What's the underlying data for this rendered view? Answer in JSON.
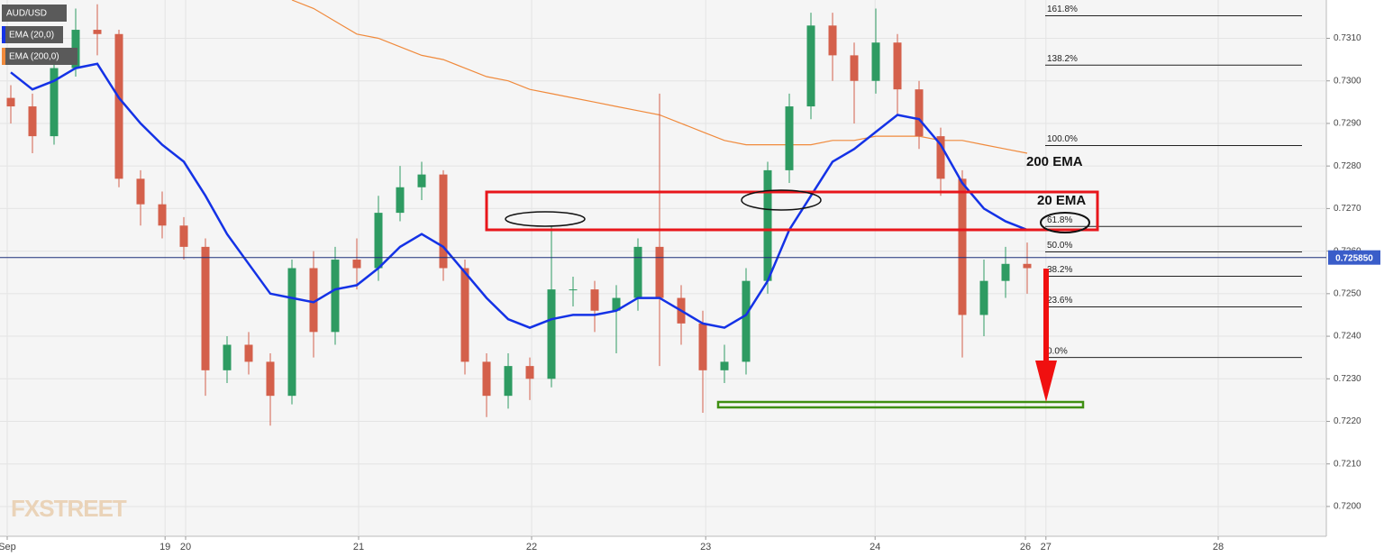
{
  "chart_data": {
    "type": "candlestick",
    "name": "AUD/USD",
    "xlim": [
      0,
      184
    ],
    "ylim": [
      0.7193,
      0.7319
    ],
    "x": [
      1.5,
      4.5,
      7.5,
      10.5,
      13.5,
      16.5,
      19.5,
      22.5,
      25.5,
      28.5,
      31.5,
      34.5,
      37.5,
      40.5,
      43.5,
      46.5,
      49.5,
      52.5,
      55.5,
      58.5,
      61.5,
      64.5,
      67.5,
      70.5,
      73.5,
      76.5,
      79.5,
      82.5,
      85.5,
      88.5,
      91.5,
      94.5,
      97.5,
      100.5,
      103.5,
      106.5,
      109.5,
      112.5,
      115.5,
      118.5,
      121.5,
      124.5,
      127.5,
      130.5,
      133.5,
      136.5,
      139.5,
      142.5
    ],
    "open": [
      0.7296,
      0.7294,
      0.7287,
      0.7303,
      0.7312,
      0.7311,
      0.7277,
      0.7271,
      0.7266,
      0.7261,
      0.7232,
      0.7238,
      0.7234,
      0.7226,
      0.7256,
      0.7241,
      0.7258,
      0.7256,
      0.7269,
      0.7275,
      0.7278,
      0.7256,
      0.7234,
      0.7226,
      0.7233,
      0.723,
      0.7251,
      0.7251,
      0.7246,
      0.7249,
      0.7261,
      0.7249,
      0.7243,
      0.7232,
      0.7234,
      0.7253,
      0.7279,
      0.7294,
      0.7313,
      0.7306,
      0.73,
      0.7309,
      0.7298,
      0.7287,
      0.7277,
      0.7245,
      0.7253,
      0.7257
    ],
    "high": [
      0.7299,
      0.7297,
      0.7305,
      0.7317,
      0.7318,
      0.7312,
      0.7279,
      0.7274,
      0.7268,
      0.7263,
      0.724,
      0.7241,
      0.7236,
      0.7258,
      0.726,
      0.7261,
      0.7263,
      0.7273,
      0.728,
      0.7281,
      0.7279,
      0.7258,
      0.7236,
      0.7236,
      0.7235,
      0.7266,
      0.7254,
      0.7253,
      0.7252,
      0.7263,
      0.7297,
      0.7252,
      0.7246,
      0.7238,
      0.7256,
      0.7281,
      0.7297,
      0.7316,
      0.7316,
      0.7309,
      0.7317,
      0.7311,
      0.73,
      0.7289,
      0.7279,
      0.7258,
      0.7261,
      0.7262
    ],
    "low": [
      0.729,
      0.7283,
      0.7285,
      0.7301,
      0.7306,
      0.7275,
      0.7266,
      0.7263,
      0.7258,
      0.7226,
      0.7229,
      0.7231,
      0.7219,
      0.7224,
      0.7235,
      0.7238,
      0.7251,
      0.7253,
      0.7267,
      0.7272,
      0.7253,
      0.7231,
      0.7221,
      0.7223,
      0.7225,
      0.7228,
      0.7247,
      0.7241,
      0.7236,
      0.7246,
      0.7233,
      0.7238,
      0.7222,
      0.7229,
      0.7231,
      0.725,
      0.7276,
      0.7291,
      0.73,
      0.729,
      0.7297,
      0.7292,
      0.7284,
      0.7273,
      0.7235,
      0.724,
      0.7249,
      0.725
    ],
    "close": [
      0.7294,
      0.7287,
      0.7303,
      0.7312,
      0.7311,
      0.7277,
      0.7271,
      0.7266,
      0.7261,
      0.7232,
      0.7238,
      0.7234,
      0.7226,
      0.7256,
      0.7241,
      0.7258,
      0.7256,
      0.7269,
      0.7275,
      0.7278,
      0.7256,
      0.7234,
      0.7226,
      0.7233,
      0.723,
      0.7251,
      0.7251,
      0.7246,
      0.7249,
      0.7261,
      0.7249,
      0.7243,
      0.7232,
      0.7234,
      0.7253,
      0.7279,
      0.7294,
      0.7313,
      0.7306,
      0.73,
      0.7309,
      0.7298,
      0.7287,
      0.7277,
      0.7245,
      0.7253,
      0.7257,
      0.7256
    ],
    "colors": {
      "up": "#2e9b62",
      "down": "#d4604b"
    },
    "series": [
      {
        "name": "EMA (20,0)",
        "color": "#1432e6",
        "values": [
          0.7302,
          0.7298,
          0.73,
          0.7303,
          0.7304,
          0.7296,
          0.729,
          0.7285,
          0.7281,
          0.7273,
          0.7264,
          0.7257,
          0.725,
          0.7249,
          0.7248,
          0.7251,
          0.7252,
          0.7256,
          0.7261,
          0.7264,
          0.7261,
          0.7255,
          0.7249,
          0.7244,
          0.7242,
          0.7244,
          0.7245,
          0.7245,
          0.7246,
          0.7249,
          0.7249,
          0.7246,
          0.7243,
          0.7242,
          0.7245,
          0.7253,
          0.7265,
          0.7273,
          0.7281,
          0.7284,
          0.7288,
          0.7292,
          0.7291,
          0.7285,
          0.7276,
          0.727,
          0.7267,
          0.7265
        ]
      },
      {
        "name": "EMA (200,0)",
        "color": "#f08a3c",
        "values": [
          null,
          null,
          null,
          null,
          null,
          null,
          null,
          null,
          null,
          null,
          null,
          null,
          null,
          0.7319,
          0.7317,
          0.7314,
          0.7311,
          0.731,
          0.7308,
          0.7306,
          0.7305,
          0.7303,
          0.7301,
          0.73,
          0.7298,
          0.7297,
          0.7296,
          0.7295,
          0.7294,
          0.7293,
          0.7292,
          0.729,
          0.7288,
          0.7286,
          0.7285,
          0.7285,
          0.7285,
          0.7285,
          0.7286,
          0.7286,
          0.7287,
          0.7287,
          0.7287,
          0.7286,
          0.7286,
          0.7285,
          0.7284,
          0.7283
        ]
      }
    ],
    "yticks": [
      {
        "value": 0.72,
        "label": "0.7200"
      },
      {
        "value": 0.721,
        "label": "0.7210"
      },
      {
        "value": 0.722,
        "label": "0.7220"
      },
      {
        "value": 0.723,
        "label": "0.7230"
      },
      {
        "value": 0.724,
        "label": "0.7240"
      },
      {
        "value": 0.725,
        "label": "0.7250"
      },
      {
        "value": 0.726,
        "label": "0.7260"
      },
      {
        "value": 0.727,
        "label": "0.7270"
      },
      {
        "value": 0.728,
        "label": "0.7280"
      },
      {
        "value": 0.729,
        "label": "0.7290"
      },
      {
        "value": 0.73,
        "label": "0.7300"
      },
      {
        "value": 0.731,
        "label": "0.7310"
      }
    ],
    "xticks": [
      {
        "value": 1,
        "label": "Sep"
      },
      {
        "value": 22.9,
        "label": "19"
      },
      {
        "value": 25.75,
        "label": "20"
      },
      {
        "value": 49.75,
        "label": "21"
      },
      {
        "value": 73.75,
        "label": "22"
      },
      {
        "value": 97.9,
        "label": "23"
      },
      {
        "value": 121.4,
        "label": "24"
      },
      {
        "value": 142.25,
        "label": "26"
      },
      {
        "value": 145.1,
        "label": "27"
      },
      {
        "value": 169,
        "label": "28"
      }
    ],
    "grid": true,
    "current_price": {
      "value": 0.72585,
      "label": "0.725850"
    },
    "fib_levels": [
      {
        "value": 0.73153,
        "label": "161.8%"
      },
      {
        "value": 0.73037,
        "label": "138.2%"
      },
      {
        "value": 0.72848,
        "label": "100.0%"
      },
      {
        "value": 0.72658,
        "label": "61.8%"
      },
      {
        "value": 0.72598,
        "label": "50.0%"
      },
      {
        "value": 0.72541,
        "label": "38.2%"
      },
      {
        "value": 0.72469,
        "label": "23.6%"
      },
      {
        "value": 0.7235,
        "label": "0.0%"
      }
    ],
    "annotations": [
      "200 EMA",
      "20 EMA"
    ],
    "watermark": "FXSTREET"
  }
}
